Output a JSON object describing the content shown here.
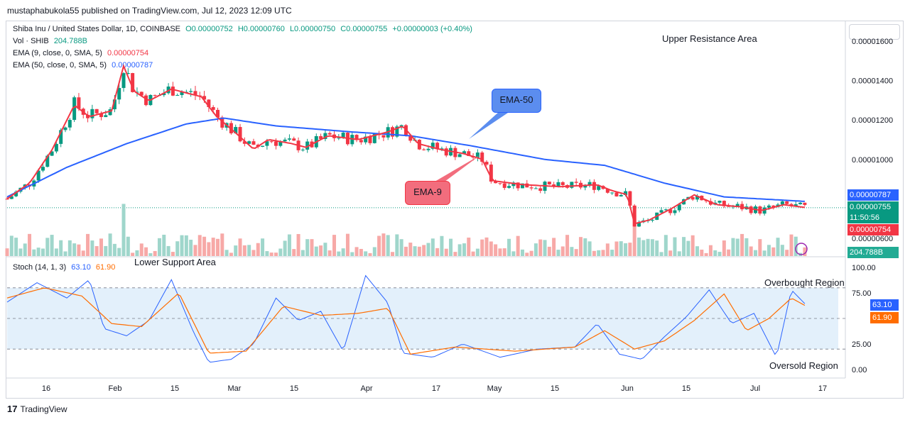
{
  "header": {
    "published": "mustaphabukola55 published on TradingView.com, Jul 12, 2023 12:09 UTC"
  },
  "legend": {
    "symbol": "Shiba Inu / United States Dollar, 1D, COINBASE",
    "open": "O0.00000752",
    "high": "H0.00000760",
    "low": "L0.00000750",
    "close": "C0.00000755",
    "change": "+0.00000003 (+0.40%)",
    "vol_label": "Vol · SHIB",
    "vol_value": "204.788B",
    "ema9_label": "EMA (9, close, 0, SMA, 5)",
    "ema9_value": "0.00000754",
    "ema50_label": "EMA (50, close, 0, SMA, 5)",
    "ema50_value": "0.00000787",
    "stoch_label": "Stoch (14, 1, 3)",
    "stoch_k": "63.10",
    "stoch_d": "61.90"
  },
  "annotations": {
    "upper": "Upper Resistance Area",
    "lower": "Lower Support Area",
    "overbought": "Overbought Region",
    "oversold": "Oversold Region",
    "ema50": "EMA-50",
    "ema9": "EMA-9"
  },
  "price_tags": {
    "ema50": "0.00000787",
    "last": "0.00000755",
    "countdown": "11:50:56",
    "ema9": "0.00000754",
    "volume": "204.788B",
    "stoch_k": "63.10",
    "stoch_d": "61.90"
  },
  "footer": {
    "brand": "TradingView"
  },
  "colors": {
    "up": "#089981",
    "down": "#f23645",
    "ema9": "#f23645",
    "ema50": "#2962ff",
    "stoch_k": "#2962ff",
    "stoch_d": "#ff6d00",
    "band": "#e3f0fb"
  },
  "chart_data": {
    "type": "candlestick",
    "price_axis": {
      "ticks": [
        "0.00001600",
        "0.00001400",
        "0.00001200",
        "0.00001000",
        "0.00000600"
      ],
      "tick_values": [
        1.6e-05,
        1.4e-05,
        1.2e-05,
        1e-05,
        6e-06
      ]
    },
    "x_ticks": [
      "16",
      "Feb",
      "15",
      "Mar",
      "15",
      "Apr",
      "17",
      "May",
      "15",
      "Jun",
      "15",
      "Jul",
      "17"
    ],
    "stoch_axis": {
      "ticks": [
        "100.00",
        "75.00",
        "25.00",
        "0.00"
      ],
      "tick_values": [
        100,
        75,
        25,
        0
      ],
      "levels": [
        80,
        50,
        20
      ]
    },
    "last_close": 7.55e-06,
    "ema9_last": 7.54e-06,
    "ema50_last": 7.87e-06,
    "price_path": [
      [
        0,
        8e-06
      ],
      [
        15,
        8.8e-06
      ],
      [
        30,
        1.05e-05
      ],
      [
        45,
        1.28e-05
      ],
      [
        55,
        1.22e-05
      ],
      [
        70,
        1.25e-05
      ],
      [
        78,
        1.48e-05
      ],
      [
        85,
        1.35e-05
      ],
      [
        95,
        1.3e-05
      ],
      [
        110,
        1.36e-05
      ],
      [
        130,
        1.32e-05
      ],
      [
        140,
        1.22e-05
      ],
      [
        155,
        1.12e-05
      ],
      [
        165,
        1.05e-05
      ],
      [
        175,
        1.1e-05
      ],
      [
        190,
        1.08e-05
      ],
      [
        200,
        1.06e-05
      ],
      [
        215,
        1.12e-05
      ],
      [
        235,
        1.1e-05
      ],
      [
        255,
        1.14e-05
      ],
      [
        265,
        1.17e-05
      ],
      [
        275,
        1.08e-05
      ],
      [
        290,
        1.05e-05
      ],
      [
        305,
        1.03e-05
      ],
      [
        318,
        1e-05
      ],
      [
        325,
        8.9e-06
      ],
      [
        345,
        8.7e-06
      ],
      [
        370,
        8.6e-06
      ],
      [
        395,
        8.7e-06
      ],
      [
        405,
        8.4e-06
      ],
      [
        415,
        8.2e-06
      ],
      [
        420,
        6.7e-06
      ],
      [
        430,
        6.9e-06
      ],
      [
        445,
        7.5e-06
      ],
      [
        460,
        8.2e-06
      ],
      [
        475,
        7.7e-06
      ],
      [
        490,
        7.6e-06
      ],
      [
        505,
        7.4e-06
      ],
      [
        520,
        7.7e-06
      ],
      [
        535,
        7.55e-06
      ]
    ],
    "ema50_path": [
      [
        0,
        8.1e-06
      ],
      [
        40,
        9.6e-06
      ],
      [
        80,
        1.08e-05
      ],
      [
        120,
        1.18e-05
      ],
      [
        145,
        1.21e-05
      ],
      [
        180,
        1.17e-05
      ],
      [
        230,
        1.14e-05
      ],
      [
        270,
        1.12e-05
      ],
      [
        310,
        1.07e-05
      ],
      [
        360,
        1e-05
      ],
      [
        400,
        9.7e-06
      ],
      [
        440,
        8.8e-06
      ],
      [
        480,
        8.1e-06
      ],
      [
        535,
        7.87e-06
      ]
    ],
    "stoch_k_path": [
      [
        0,
        66
      ],
      [
        20,
        85
      ],
      [
        40,
        70
      ],
      [
        55,
        88
      ],
      [
        65,
        40
      ],
      [
        80,
        33
      ],
      [
        95,
        48
      ],
      [
        110,
        88
      ],
      [
        125,
        36
      ],
      [
        135,
        7
      ],
      [
        150,
        10
      ],
      [
        165,
        25
      ],
      [
        180,
        70
      ],
      [
        195,
        48
      ],
      [
        210,
        57
      ],
      [
        225,
        18
      ],
      [
        240,
        92
      ],
      [
        255,
        65
      ],
      [
        265,
        16
      ],
      [
        285,
        12
      ],
      [
        305,
        25
      ],
      [
        330,
        12
      ],
      [
        355,
        20
      ],
      [
        380,
        22
      ],
      [
        395,
        45
      ],
      [
        410,
        15
      ],
      [
        425,
        10
      ],
      [
        440,
        32
      ],
      [
        455,
        52
      ],
      [
        470,
        78
      ],
      [
        485,
        45
      ],
      [
        500,
        55
      ],
      [
        515,
        12
      ],
      [
        525,
        78
      ],
      [
        535,
        63
      ]
    ],
    "stoch_d_path": [
      [
        0,
        70
      ],
      [
        25,
        80
      ],
      [
        50,
        72
      ],
      [
        70,
        45
      ],
      [
        90,
        42
      ],
      [
        115,
        75
      ],
      [
        135,
        16
      ],
      [
        160,
        18
      ],
      [
        185,
        62
      ],
      [
        210,
        53
      ],
      [
        235,
        55
      ],
      [
        255,
        60
      ],
      [
        270,
        15
      ],
      [
        300,
        22
      ],
      [
        340,
        18
      ],
      [
        380,
        22
      ],
      [
        400,
        38
      ],
      [
        420,
        20
      ],
      [
        440,
        28
      ],
      [
        460,
        48
      ],
      [
        480,
        74
      ],
      [
        495,
        38
      ],
      [
        510,
        50
      ],
      [
        525,
        70
      ],
      [
        535,
        62
      ]
    ]
  }
}
